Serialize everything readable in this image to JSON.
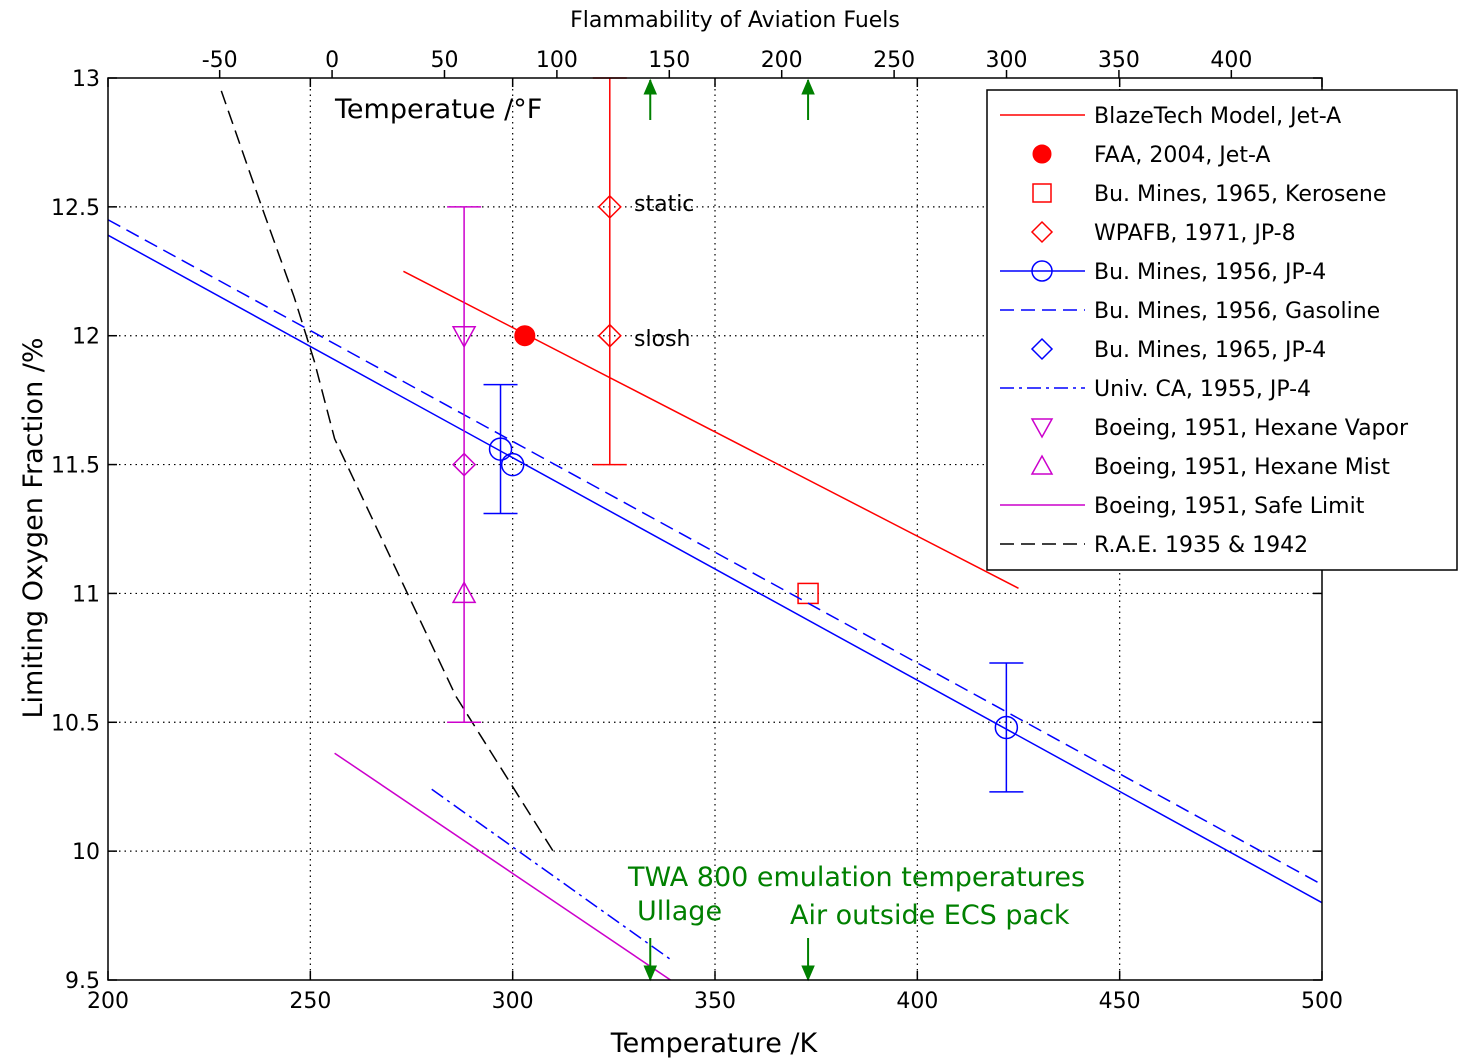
{
  "chart_data": {
    "type": "line",
    "title": "Flammability of Aviation Fuels",
    "xlabel": "Temperature /K",
    "ylabel": "Limiting Oxygen Fraction /%",
    "top_axis_label": "Temperatue /°F",
    "xlim": [
      200,
      500
    ],
    "ylim": [
      9.5,
      13
    ],
    "top_xlim": [
      -99.67,
      440.33
    ],
    "x_ticks": [
      "200",
      "250",
      "300",
      "350",
      "400",
      "450",
      "500"
    ],
    "y_ticks": [
      "9.5",
      "10",
      "10.5",
      "11",
      "11.5",
      "12",
      "12.5",
      "13"
    ],
    "top_ticks": [
      "-50",
      "0",
      "50",
      "100",
      "150",
      "200",
      "250",
      "300",
      "350",
      "400"
    ],
    "grid": true,
    "legend_position": "top-right",
    "series": [
      {
        "name": "BlazeTech Model, Jet-A",
        "color": "#ff0000",
        "style": "solid",
        "marker": "none",
        "x": [
          273,
          425
        ],
        "y": [
          12.25,
          11.02
        ]
      },
      {
        "name": "FAA, 2004, Jet-A",
        "color": "#ff0000",
        "style": "none",
        "marker": "filled-circle",
        "x": [
          303
        ],
        "y": [
          12.0
        ]
      },
      {
        "name": "Bu. Mines, 1965, Kerosene",
        "color": "#ff0000",
        "style": "none",
        "marker": "square",
        "x": [
          373
        ],
        "y": [
          11.0
        ]
      },
      {
        "name": "WPAFB, 1971, JP-8",
        "color": "#ff0000",
        "style": "none",
        "marker": "diamond",
        "x": [
          324,
          324
        ],
        "y": [
          12.5,
          12.0
        ],
        "error_bar": {
          "x": 324,
          "low": 11.5,
          "high": 13.0
        }
      },
      {
        "name": "Bu. Mines, 1956, JP-4",
        "color": "#0000ff",
        "style": "solid",
        "marker": "circle",
        "line_x": [
          200,
          500
        ],
        "line_y": [
          12.39,
          9.8
        ],
        "x": [
          297,
          300,
          422
        ],
        "y": [
          11.56,
          11.5,
          10.48
        ],
        "error_bars": [
          {
            "x": 297,
            "low": 11.31,
            "high": 11.81
          },
          {
            "x": 422,
            "low": 10.23,
            "high": 10.73
          }
        ]
      },
      {
        "name": "Bu. Mines, 1956, Gasoline",
        "color": "#0000ff",
        "style": "dashed",
        "marker": "none",
        "x": [
          200,
          500
        ],
        "y": [
          12.45,
          9.87
        ]
      },
      {
        "name": "Bu. Mines, 1965, JP-4",
        "color": "#0000ff",
        "style": "none",
        "marker": "diamond",
        "x": [],
        "y": []
      },
      {
        "name": "Univ. CA, 1955, JP-4",
        "color": "#0000ff",
        "style": "dashdot",
        "marker": "none",
        "x": [
          280,
          339
        ],
        "y": [
          10.24,
          9.58
        ]
      },
      {
        "name": "Boeing, 1951, Hexane Vapor",
        "color": "#cc00cc",
        "style": "none",
        "marker": "triangle-down",
        "x": [
          288
        ],
        "y": [
          12.0
        ]
      },
      {
        "name": "Boeing, 1951, Hexane Mist",
        "color": "#cc00cc",
        "style": "none",
        "marker": "triangle-up",
        "x": [
          288
        ],
        "y": [
          11.0
        ]
      },
      {
        "name": "Boeing, 1951, Safe Limit",
        "color": "#cc00cc",
        "style": "solid",
        "marker": "none",
        "x": [
          256,
          339
        ],
        "y": [
          10.38,
          9.5
        ]
      },
      {
        "name": "R.A.E. 1935 & 1942",
        "color": "#000000",
        "style": "dashed",
        "marker": "none",
        "x": [
          228,
          238,
          246,
          251,
          256,
          262,
          268,
          274,
          280,
          286,
          292,
          298,
          304,
          310
        ],
        "y": [
          12.95,
          12.5,
          12.15,
          11.9,
          11.6,
          11.4,
          11.2,
          11.0,
          10.8,
          10.6,
          10.45,
          10.3,
          10.15,
          10.0
        ]
      }
    ],
    "extra_markers": [
      {
        "color": "#cc00cc",
        "marker": "diamond",
        "x": 288,
        "y": 11.5
      },
      {
        "color": "#cc00cc",
        "error_bar": {
          "x": 288,
          "low": 10.5,
          "high": 12.5
        }
      }
    ],
    "annotations": [
      {
        "text": "static",
        "x": 324,
        "y": 12.5,
        "color": "#000000"
      },
      {
        "text": "slosh",
        "x": 324,
        "y": 12.0,
        "color": "#000000"
      },
      {
        "text": "TWA 800 emulation temperatures",
        "color": "#008000"
      },
      {
        "text": "Ullage",
        "color": "#008000",
        "x": 334
      },
      {
        "text": "Air outside ECS pack",
        "color": "#008000",
        "x": 373
      }
    ],
    "green_arrows_temperatures_K": [
      334,
      373
    ]
  }
}
